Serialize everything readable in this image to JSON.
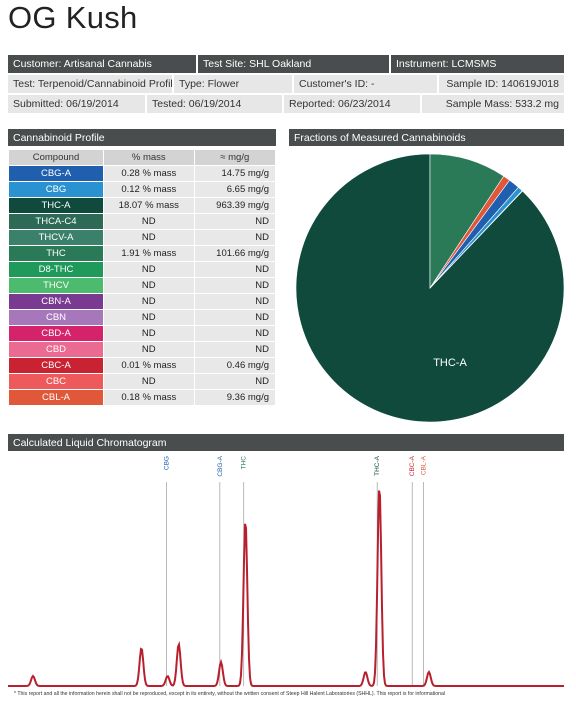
{
  "title": "OG Kush",
  "info": {
    "customer": "Customer: Artisanal Cannabis",
    "test_site": "Test Site: SHL Oakland",
    "instrument": "Instrument: LCMSMS",
    "test": "Test: Terpenoid/Cannabinoid Profile",
    "type": "Type: Flower",
    "customer_id": "Customer's ID: -",
    "sample_id": "Sample ID: 140619J018",
    "submitted": "Submitted: 06/19/2014",
    "tested": "Tested: 06/19/2014",
    "reported": "Reported: 06/23/2014",
    "sample_mass": "Sample Mass: 533.2 mg"
  },
  "profile": {
    "heading": "Cannabinoid Profile",
    "columns": [
      "Compound",
      "% mass",
      "≈ mg/g"
    ],
    "rows": [
      {
        "compound": "CBG-A",
        "mass": "0.28 % mass",
        "mg": "14.75 mg/g",
        "color": "#1f5fae"
      },
      {
        "compound": "CBG",
        "mass": "0.12 % mass",
        "mg": "6.65 mg/g",
        "color": "#2a92d0"
      },
      {
        "compound": "THC-A",
        "mass": "18.07 % mass",
        "mg": "963.39 mg/g",
        "color": "#0f4a3c"
      },
      {
        "compound": "THCA-C4",
        "mass": "ND",
        "mg": "ND",
        "color": "#2c6a55"
      },
      {
        "compound": "THCV-A",
        "mass": "ND",
        "mg": "ND",
        "color": "#3b806a"
      },
      {
        "compound": "THC",
        "mass": "1.91 % mass",
        "mg": "101.66 mg/g",
        "color": "#2a7a57"
      },
      {
        "compound": "D8-THC",
        "mass": "ND",
        "mg": "ND",
        "color": "#1f9a5a"
      },
      {
        "compound": "THCV",
        "mass": "ND",
        "mg": "ND",
        "color": "#4dbb6e"
      },
      {
        "compound": "CBN-A",
        "mass": "ND",
        "mg": "ND",
        "color": "#7a3a92"
      },
      {
        "compound": "CBN",
        "mass": "ND",
        "mg": "ND",
        "color": "#a678bb"
      },
      {
        "compound": "CBD-A",
        "mass": "ND",
        "mg": "ND",
        "color": "#d4236b"
      },
      {
        "compound": "CBD",
        "mass": "ND",
        "mg": "ND",
        "color": "#ea6a92"
      },
      {
        "compound": "CBC-A",
        "mass": "0.01 % mass",
        "mg": "0.46 mg/g",
        "color": "#c92232"
      },
      {
        "compound": "CBC",
        "mass": "ND",
        "mg": "ND",
        "color": "#ee5a5c"
      },
      {
        "compound": "CBL-A",
        "mass": "0.18 % mass",
        "mg": "9.36 mg/g",
        "color": "#e0573a"
      }
    ]
  },
  "fractions": {
    "heading": "Fractions of Measured Cannabinoids",
    "label": "THC-A"
  },
  "chromatogram": {
    "heading": "Calculated Liquid Chromatogram"
  },
  "footnote": "* This report and all the information herein shall not be reproduced, except in its entirety, without the written consent of Steep Hill Halent Laboratories (SHHL). This report is for informational",
  "chart_data": [
    {
      "type": "pie",
      "title": "Fractions of Measured Cannabinoids",
      "categories": [
        "THC-A",
        "THC",
        "CBL-A",
        "CBG-A",
        "CBG",
        "CBC-A"
      ],
      "values": [
        963.39,
        101.66,
        9.36,
        14.75,
        6.65,
        0.46
      ],
      "colors": [
        "#0f4a3c",
        "#2a7a57",
        "#e0573a",
        "#1f5fae",
        "#2a92d0",
        "#c92232"
      ],
      "slice_label": "THC-A"
    },
    {
      "type": "line",
      "title": "Calculated Liquid Chromatogram",
      "markers": [
        {
          "label": "CBG",
          "x": 0.285,
          "color": "#1f5fae"
        },
        {
          "label": "CBG-A",
          "x": 0.381,
          "color": "#1f5fae"
        },
        {
          "label": "THC",
          "x": 0.424,
          "color": "#2a7a57"
        },
        {
          "label": "THC-A",
          "x": 0.664,
          "color": "#0f4a3c"
        },
        {
          "label": "CBC-A",
          "x": 0.727,
          "color": "#c92232"
        },
        {
          "label": "CBL-A",
          "x": 0.747,
          "color": "#e0573a"
        }
      ],
      "peaks": [
        {
          "x": 0.045,
          "h": 0.05
        },
        {
          "x": 0.24,
          "h": 0.19
        },
        {
          "x": 0.287,
          "h": 0.05
        },
        {
          "x": 0.307,
          "h": 0.21
        },
        {
          "x": 0.383,
          "h": 0.12
        },
        {
          "x": 0.427,
          "h": 0.83
        },
        {
          "x": 0.643,
          "h": 0.07
        },
        {
          "x": 0.668,
          "h": 1.0
        },
        {
          "x": 0.757,
          "h": 0.07
        }
      ],
      "ylim": [
        0,
        1
      ],
      "color": "#b8202d"
    }
  ]
}
